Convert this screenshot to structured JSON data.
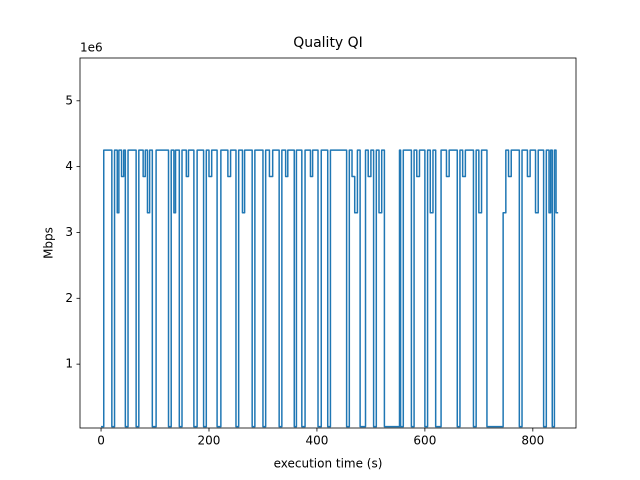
{
  "chart_data": {
    "type": "line",
    "title": "Quality QI",
    "x_label": "execution time (s)",
    "y_label": "Mbps",
    "y_offset_label": "1e6",
    "step": "post",
    "x": [
      0,
      5,
      20,
      25,
      30,
      33,
      38,
      42,
      45,
      50,
      65,
      70,
      78,
      82,
      86,
      90,
      95,
      102,
      125,
      130,
      135,
      138,
      145,
      150,
      158,
      162,
      172,
      178,
      190,
      195,
      200,
      205,
      215,
      222,
      235,
      240,
      250,
      255,
      262,
      266,
      280,
      285,
      300,
      305,
      312,
      318,
      330,
      335,
      342,
      346,
      358,
      362,
      372,
      378,
      388,
      392,
      402,
      408,
      420,
      425,
      455,
      460,
      465,
      470,
      475,
      480,
      490,
      495,
      500,
      505,
      510,
      515,
      520,
      525,
      553,
      555,
      560,
      575,
      580,
      585,
      590,
      600,
      605,
      610,
      615,
      620,
      630,
      640,
      645,
      660,
      665,
      670,
      675,
      690,
      695,
      700,
      705,
      715,
      745,
      750,
      755,
      760,
      775,
      780,
      790,
      795,
      805,
      810,
      820,
      825,
      830,
      833,
      836,
      840,
      843,
      847
    ],
    "series": [
      {
        "color": "#1f77b4",
        "values": [
          50000,
          4250000,
          50000,
          4250000,
          3300000,
          4250000,
          3850000,
          4250000,
          50000,
          4250000,
          50000,
          4250000,
          3850000,
          4250000,
          3300000,
          4250000,
          50000,
          4250000,
          50000,
          4250000,
          3300000,
          4250000,
          50000,
          4250000,
          3850000,
          4250000,
          50000,
          4250000,
          50000,
          4250000,
          3850000,
          4250000,
          50000,
          4250000,
          3850000,
          4250000,
          50000,
          4250000,
          3300000,
          4250000,
          50000,
          4250000,
          50000,
          4250000,
          3850000,
          4250000,
          50000,
          4250000,
          3850000,
          4250000,
          50000,
          4250000,
          50000,
          4250000,
          3850000,
          4250000,
          50000,
          4250000,
          50000,
          4250000,
          50000,
          4250000,
          3850000,
          3300000,
          4250000,
          50000,
          4250000,
          3850000,
          4250000,
          50000,
          4250000,
          3300000,
          4250000,
          50000,
          4250000,
          50000,
          4250000,
          50000,
          4250000,
          3850000,
          4250000,
          50000,
          4250000,
          3300000,
          4250000,
          50000,
          4250000,
          3850000,
          4250000,
          50000,
          4250000,
          3850000,
          4250000,
          50000,
          4250000,
          3300000,
          4250000,
          50000,
          3300000,
          4250000,
          3850000,
          4250000,
          50000,
          4250000,
          3850000,
          4250000,
          3300000,
          4250000,
          50000,
          4250000,
          3300000,
          4250000,
          50000,
          4250000,
          3300000,
          3300000
        ]
      }
    ],
    "xlim": [
      -39,
      880
    ],
    "ylim": [
      30000,
      5650000
    ],
    "xticks": [
      0,
      200,
      400,
      600,
      800
    ],
    "yticks": [
      {
        "value": 1000000,
        "label": "1"
      },
      {
        "value": 2000000,
        "label": "2"
      },
      {
        "value": 3000000,
        "label": "3"
      },
      {
        "value": 4000000,
        "label": "4"
      },
      {
        "value": 5000000,
        "label": "5"
      }
    ],
    "grid": false
  }
}
